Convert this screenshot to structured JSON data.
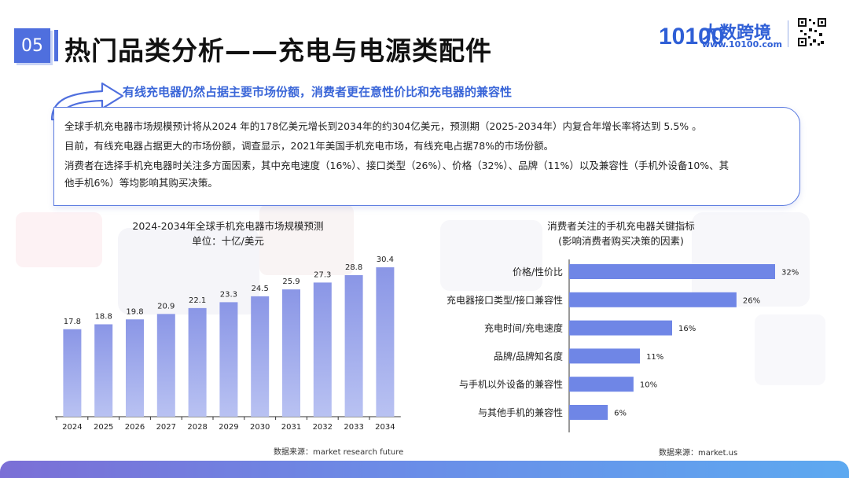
{
  "header": {
    "section_number": "05",
    "title": "热门品类分析——充电与电源类配件",
    "logo_text": "大数跨境",
    "logo_url": "www.10100.com",
    "logo_number": "10100"
  },
  "subtitle": "有线充电器仍然占据主要市场份额，消费者更在意性价比和充电器的兼容性",
  "paragraphs": [
    "全球手机充电器市场规模预计将从2024 年的178亿美元增长到2034年的约304亿美元，预测期（2025-2034年）内复合年增长率将达到 5.5% 。",
    "目前，有线充电器占据更大的市场份额，调查显示，2021年美国手机充电市场，有线充电占据78%的市场份额。",
    "消费者在选择手机充电器时关注多方面因素，其中充电速度（16%）、接口类型（26%）、价格（32%）、品牌（11%）以及兼容性（手机外设备10%、其",
    "他手机6%）等均影响其购买决策。"
  ],
  "chart_data": [
    {
      "type": "bar",
      "title": "2024-2034年全球手机充电器市场规模预测",
      "subtitle": "单位：十亿/美元",
      "categories": [
        "2024",
        "2025",
        "2026",
        "2027",
        "2028",
        "2029",
        "2030",
        "2031",
        "2032",
        "2033",
        "2034"
      ],
      "values": [
        17.8,
        18.8,
        19.8,
        20.9,
        22.1,
        23.3,
        24.5,
        25.9,
        27.3,
        28.8,
        30.4
      ],
      "value_labels": [
        "17.8",
        "18.8",
        "19.8",
        "20.9",
        "22.1",
        "23.3",
        "24.5",
        "25.9",
        "27.3",
        "28.8",
        "30.4"
      ],
      "xlabel": "",
      "ylabel": "",
      "ylim": [
        0,
        30.4
      ],
      "source": "数据来源：market research future",
      "color_top": "#8a96e6",
      "color_bottom": "#b9c2f2"
    },
    {
      "type": "bar",
      "orientation": "horizontal",
      "title": "消费者关注的手机充电器关键指标",
      "subtitle": "(影响消费者购买决策的因素)",
      "categories": [
        "价格/性价比",
        "充电器接口类型/接口兼容性",
        "充电时间/充电速度",
        "品牌/品牌知名度",
        "与手机以外设备的兼容性",
        "与其他手机的兼容性"
      ],
      "values": [
        32,
        26,
        16,
        11,
        10,
        6
      ],
      "value_labels": [
        "32%",
        "26%",
        "16%",
        "11%",
        "10%",
        "6%"
      ],
      "xlim": [
        0,
        32
      ],
      "source": "数据来源：market.us",
      "color": "#6f86e6"
    }
  ]
}
